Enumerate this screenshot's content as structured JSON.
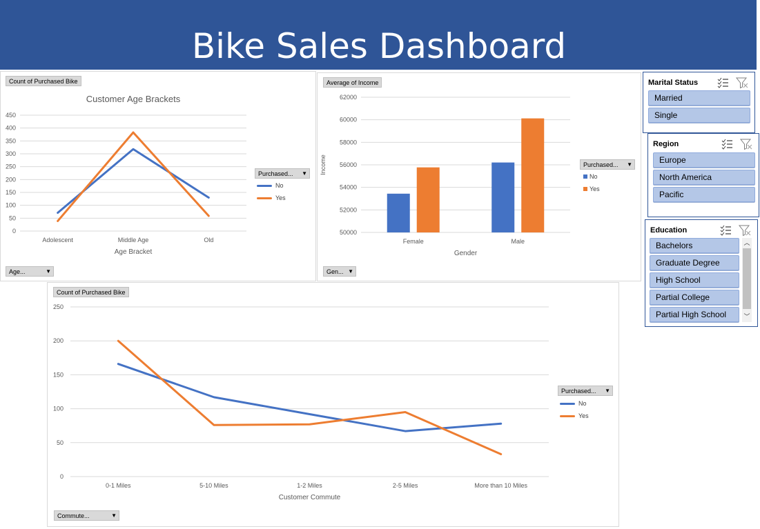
{
  "banner": {
    "title": "Bike Sales Dashboard"
  },
  "age_chart": {
    "value_field": "Count of Purchased Bike",
    "axis_field": "Age...",
    "legend_field": "Purchased...",
    "chart_data": {
      "type": "line",
      "title": "Customer Age Brackets",
      "xlabel": "Age Bracket",
      "ylabel": "",
      "categories": [
        "Adolescent",
        "Middle Age",
        "Old"
      ],
      "ylim": [
        0,
        450
      ],
      "yticks": [
        0,
        50,
        100,
        150,
        200,
        250,
        300,
        350,
        400,
        450
      ],
      "series": [
        {
          "name": "No",
          "color": "#4472c4",
          "values": [
            71,
            318,
            130
          ]
        },
        {
          "name": "Yes",
          "color": "#ed7d31",
          "values": [
            39,
            383,
            59
          ]
        }
      ],
      "grid": true,
      "legend": "right"
    }
  },
  "income_chart": {
    "value_field": "Average of Income",
    "axis_field": "Gen...",
    "legend_field": "Purchased...",
    "chart_data": {
      "type": "bar",
      "title": "",
      "xlabel": "Gender",
      "ylabel": "Income",
      "categories": [
        "Female",
        "Male"
      ],
      "ylim": [
        50000,
        62000
      ],
      "yticks": [
        50000,
        52000,
        54000,
        56000,
        58000,
        60000,
        62000
      ],
      "series": [
        {
          "name": "No",
          "color": "#4472c4",
          "values": [
            53440,
            56208
          ]
        },
        {
          "name": "Yes",
          "color": "#ed7d31",
          "values": [
            55775,
            60124
          ]
        }
      ],
      "grid": true,
      "legend": "right"
    }
  },
  "commute_chart": {
    "value_field": "Count of Purchased Bike",
    "axis_field": "Commute...",
    "legend_field": "Purchased...",
    "chart_data": {
      "type": "line",
      "title": "",
      "xlabel": "Customer Commute",
      "ylabel": "",
      "categories": [
        "0-1 Miles",
        "5-10 Miles",
        "1-2 Miles",
        "2-5 Miles",
        "More than 10 Miles"
      ],
      "ylim": [
        0,
        250
      ],
      "yticks": [
        0,
        50,
        100,
        150,
        200,
        250
      ],
      "series": [
        {
          "name": "No",
          "color": "#4472c4",
          "values": [
            166,
            117,
            92,
            67,
            78
          ]
        },
        {
          "name": "Yes",
          "color": "#ed7d31",
          "values": [
            200,
            76,
            77,
            95,
            33
          ]
        }
      ],
      "grid": true,
      "legend": "right"
    }
  },
  "slicers": {
    "marital": {
      "title": "Marital Status",
      "items": [
        "Married",
        "Single"
      ]
    },
    "region": {
      "title": "Region",
      "items": [
        "Europe",
        "North America",
        "Pacific"
      ]
    },
    "education": {
      "title": "Education",
      "items": [
        "Bachelors",
        "Graduate Degree",
        "High School",
        "Partial College",
        "Partial High School"
      ]
    }
  },
  "icons": {
    "multi_select": "multi-select-icon",
    "clear_filter": "clear-filter-icon"
  }
}
